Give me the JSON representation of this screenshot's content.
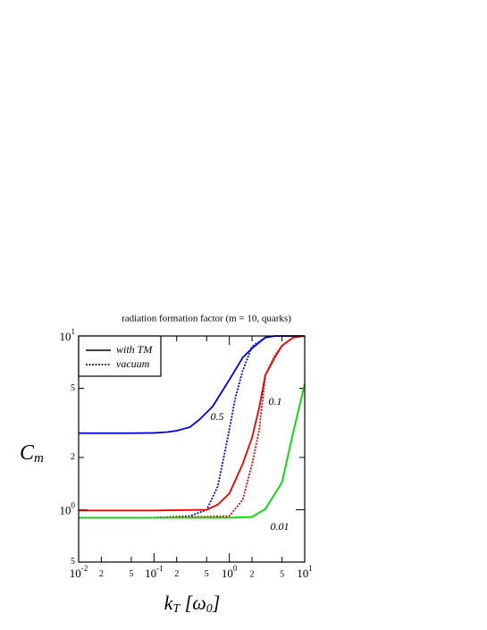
{
  "chart_data": {
    "type": "line",
    "title": "radiation formation factor (m = 10, quarks)",
    "xlabel": {
      "main": "k",
      "sub": "T",
      "unit": "[ω",
      "unit_sub": "0",
      "close": "]"
    },
    "ylabel": {
      "main": "C",
      "sub": "m"
    },
    "xscale": "log",
    "yscale": "log",
    "xlim": [
      0.01,
      10
    ],
    "ylim": [
      0.5,
      10
    ],
    "xticks": [
      {
        "value": 0.01,
        "label": "10",
        "exponent": "-2"
      },
      {
        "value": 0.02,
        "label": "2"
      },
      {
        "value": 0.05,
        "label": "5"
      },
      {
        "value": 0.1,
        "label": "10",
        "exponent": "-1"
      },
      {
        "value": 0.2,
        "label": "2"
      },
      {
        "value": 0.5,
        "label": "5"
      },
      {
        "value": 1,
        "label": "10",
        "exponent": "0"
      },
      2,
      5,
      {
        "value": 10,
        "label": "10",
        "exponent": "1"
      }
    ],
    "yticks": [
      {
        "value": 0.5,
        "label": "5"
      },
      {
        "value": 1,
        "label": "10",
        "exponent": "0"
      },
      2,
      5,
      {
        "value": 10,
        "label": "10",
        "exponent": "1"
      }
    ],
    "legend_position": "upper left",
    "legend": [
      {
        "name": "with TM",
        "style": "solid"
      },
      {
        "name": "vacuum",
        "style": "dotted"
      }
    ],
    "series": [
      {
        "label": "0.5",
        "color": "#0000ee",
        "style": "solid",
        "x": [
          0.01,
          0.05,
          0.1,
          0.15,
          0.2,
          0.3,
          0.4,
          0.6,
          1,
          1.5,
          2,
          3,
          4,
          10
        ],
        "values": [
          2.76,
          2.76,
          2.77,
          2.8,
          2.85,
          2.99,
          3.3,
          3.93,
          5.6,
          7.5,
          8.5,
          9.8,
          10,
          10
        ]
      },
      {
        "label": null,
        "color": "#0000ee",
        "style": "dotted",
        "x": [
          0.01,
          0.1,
          0.3,
          0.5,
          0.7,
          0.9,
          1,
          1.2,
          1.5,
          2,
          3,
          4,
          10
        ],
        "values": [
          0.9,
          0.9,
          0.92,
          1.0,
          1.36,
          2.3,
          2.9,
          4.4,
          6.3,
          8.7,
          9.8,
          10,
          10
        ]
      },
      {
        "label": "0.1",
        "color": "#ee0000",
        "style": "solid",
        "x": [
          0.01,
          0.1,
          0.5,
          0.7,
          1,
          1.5,
          2,
          2.5,
          3,
          4,
          5,
          7,
          10
        ],
        "values": [
          0.99,
          0.99,
          1.0,
          1.07,
          1.24,
          1.83,
          2.6,
          3.9,
          5.95,
          7.5,
          8.8,
          9.8,
          10
        ]
      },
      {
        "label": null,
        "color": "#ee0000",
        "style": "dotted",
        "x": [
          0.01,
          0.1,
          1,
          1.5,
          2,
          2.5,
          3,
          4,
          5,
          7,
          10
        ],
        "values": [
          0.9,
          0.9,
          0.92,
          1.14,
          1.83,
          2.9,
          5.95,
          7.7,
          8.8,
          9.8,
          10
        ]
      },
      {
        "label": "0.01",
        "color": "#00dd00",
        "style": "solid",
        "x": [
          0.01,
          0.1,
          1,
          2,
          3,
          5,
          7,
          10
        ],
        "values": [
          0.9,
          0.9,
          0.9,
          0.91,
          1.01,
          1.44,
          2.76,
          5.3
        ]
      },
      {
        "label": null,
        "color": "#00dd00",
        "style": "dotted",
        "x": [
          0.01,
          0.1,
          1,
          2,
          3,
          5,
          7,
          10
        ],
        "values": [
          0.9,
          0.9,
          0.9,
          0.91,
          1.01,
          1.44,
          2.76,
          5.3
        ]
      }
    ]
  }
}
